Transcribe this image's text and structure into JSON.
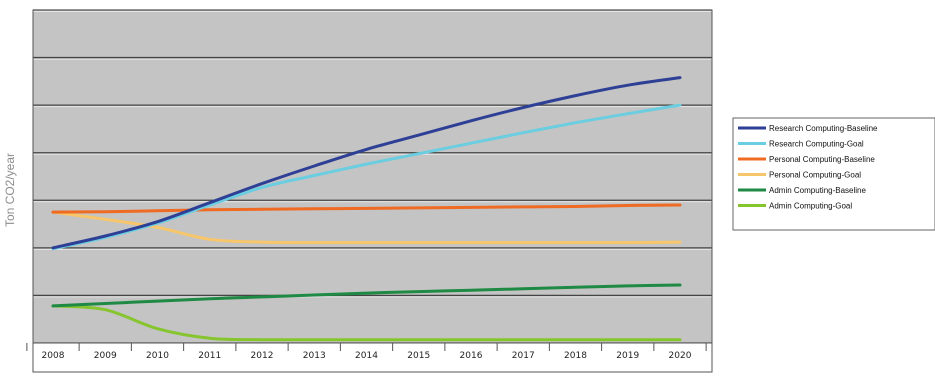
{
  "chart_data": {
    "type": "line",
    "title": "",
    "xlabel": "",
    "ylabel": "Ton CO2/year",
    "x": [
      2008,
      2009,
      2010,
      2011,
      2012,
      2013,
      2014,
      2015,
      2016,
      2017,
      2018,
      2019,
      2020
    ],
    "ylim": [
      0,
      7
    ],
    "y_ticks_labeled": false,
    "grid": true,
    "legend_position": "right",
    "plot_background": "#c4c4c4",
    "series": [
      {
        "name": "Research Computing-Baseline",
        "color": "#2e3f96",
        "values": [
          2.0,
          2.25,
          2.55,
          2.95,
          3.35,
          3.72,
          4.07,
          4.37,
          4.67,
          4.95,
          5.2,
          5.42,
          5.58
        ]
      },
      {
        "name": "Research Computing-Goal",
        "color": "#6bcde0",
        "values": [
          1.98,
          2.22,
          2.52,
          2.9,
          3.27,
          3.52,
          3.76,
          3.98,
          4.2,
          4.42,
          4.63,
          4.82,
          5.0
        ]
      },
      {
        "name": "Personal Computing-Baseline",
        "color": "#ef6a22",
        "values": [
          2.75,
          2.76,
          2.78,
          2.8,
          2.81,
          2.82,
          2.83,
          2.84,
          2.85,
          2.86,
          2.87,
          2.89,
          2.9
        ]
      },
      {
        "name": "Personal Computing-Goal",
        "color": "#f7c66a",
        "values": [
          2.75,
          2.6,
          2.43,
          2.18,
          2.12,
          2.11,
          2.11,
          2.11,
          2.11,
          2.11,
          2.11,
          2.11,
          2.12
        ]
      },
      {
        "name": "Admin Computing-Baseline",
        "color": "#1e8a44",
        "values": [
          0.78,
          0.83,
          0.88,
          0.93,
          0.97,
          1.01,
          1.05,
          1.08,
          1.11,
          1.14,
          1.17,
          1.2,
          1.22
        ]
      },
      {
        "name": "Admin Computing-Goal",
        "color": "#86c52e",
        "values": [
          0.78,
          0.7,
          0.3,
          0.1,
          0.07,
          0.07,
          0.07,
          0.07,
          0.07,
          0.07,
          0.07,
          0.07,
          0.07
        ]
      }
    ]
  }
}
